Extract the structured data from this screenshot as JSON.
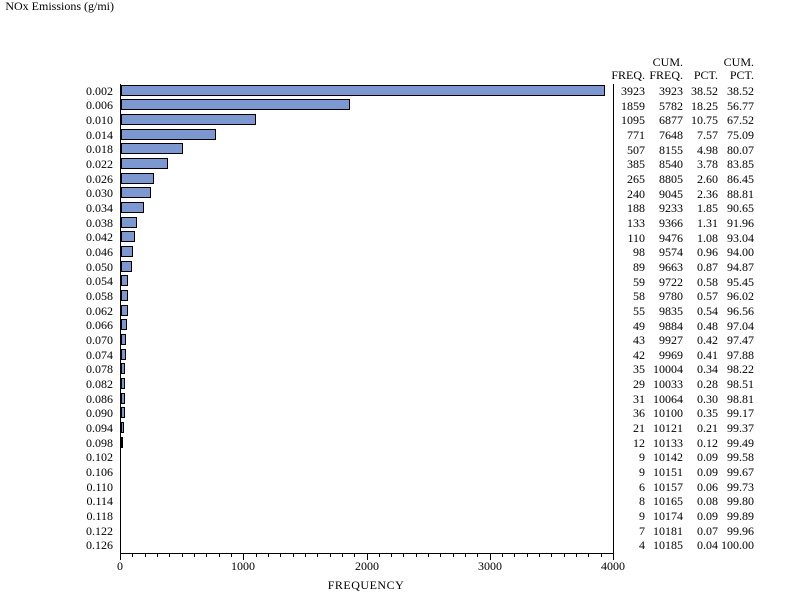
{
  "chart_data": {
    "type": "bar",
    "orientation": "horizontal",
    "ylabel": "NOx Emissions (g/mi)",
    "xlabel": "FREQUENCY",
    "xlim": [
      0,
      4000
    ],
    "x_major_ticks": [
      "0",
      "1000",
      "2000",
      "3000",
      "4000"
    ],
    "x_minor_tick_interval": 100,
    "grid": "off",
    "legend": "none",
    "bar_color": "#7D97D0",
    "bar_border_color": "#000000",
    "axis_color": "#000000",
    "categories": [
      "0.002",
      "0.006",
      "0.010",
      "0.014",
      "0.018",
      "0.022",
      "0.026",
      "0.030",
      "0.034",
      "0.038",
      "0.042",
      "0.046",
      "0.050",
      "0.054",
      "0.058",
      "0.062",
      "0.066",
      "0.070",
      "0.074",
      "0.078",
      "0.082",
      "0.086",
      "0.090",
      "0.094",
      "0.098",
      "0.102",
      "0.106",
      "0.110",
      "0.114",
      "0.118",
      "0.122",
      "0.126"
    ],
    "values": [
      3923,
      1859,
      1095,
      771,
      507,
      385,
      265,
      240,
      188,
      133,
      110,
      98,
      89,
      59,
      58,
      55,
      49,
      43,
      42,
      35,
      29,
      31,
      36,
      21,
      12,
      9,
      9,
      6,
      8,
      9,
      7,
      4
    ]
  },
  "freq_table": {
    "header_line1": [
      "",
      "CUM.",
      "",
      "CUM."
    ],
    "header_line2": [
      "FREQ.",
      "FREQ.",
      "PCT.",
      "PCT."
    ],
    "rows": [
      [
        "3923",
        "3923",
        "38.52",
        "38.52"
      ],
      [
        "1859",
        "5782",
        "18.25",
        "56.77"
      ],
      [
        "1095",
        "6877",
        "10.75",
        "67.52"
      ],
      [
        "771",
        "7648",
        "7.57",
        "75.09"
      ],
      [
        "507",
        "8155",
        "4.98",
        "80.07"
      ],
      [
        "385",
        "8540",
        "3.78",
        "83.85"
      ],
      [
        "265",
        "8805",
        "2.60",
        "86.45"
      ],
      [
        "240",
        "9045",
        "2.36",
        "88.81"
      ],
      [
        "188",
        "9233",
        "1.85",
        "90.65"
      ],
      [
        "133",
        "9366",
        "1.31",
        "91.96"
      ],
      [
        "110",
        "9476",
        "1.08",
        "93.04"
      ],
      [
        "98",
        "9574",
        "0.96",
        "94.00"
      ],
      [
        "89",
        "9663",
        "0.87",
        "94.87"
      ],
      [
        "59",
        "9722",
        "0.58",
        "95.45"
      ],
      [
        "58",
        "9780",
        "0.57",
        "96.02"
      ],
      [
        "55",
        "9835",
        "0.54",
        "96.56"
      ],
      [
        "49",
        "9884",
        "0.48",
        "97.04"
      ],
      [
        "43",
        "9927",
        "0.42",
        "97.47"
      ],
      [
        "42",
        "9969",
        "0.41",
        "97.88"
      ],
      [
        "35",
        "10004",
        "0.34",
        "98.22"
      ],
      [
        "29",
        "10033",
        "0.28",
        "98.51"
      ],
      [
        "31",
        "10064",
        "0.30",
        "98.81"
      ],
      [
        "36",
        "10100",
        "0.35",
        "99.17"
      ],
      [
        "21",
        "10121",
        "0.21",
        "99.37"
      ],
      [
        "12",
        "10133",
        "0.12",
        "99.49"
      ],
      [
        "9",
        "10142",
        "0.09",
        "99.58"
      ],
      [
        "9",
        "10151",
        "0.09",
        "99.67"
      ],
      [
        "6",
        "10157",
        "0.06",
        "99.73"
      ],
      [
        "8",
        "10165",
        "0.08",
        "99.80"
      ],
      [
        "9",
        "10174",
        "0.09",
        "99.89"
      ],
      [
        "7",
        "10181",
        "0.07",
        "99.96"
      ],
      [
        "4",
        "10185",
        "0.04",
        "100.00"
      ]
    ]
  }
}
